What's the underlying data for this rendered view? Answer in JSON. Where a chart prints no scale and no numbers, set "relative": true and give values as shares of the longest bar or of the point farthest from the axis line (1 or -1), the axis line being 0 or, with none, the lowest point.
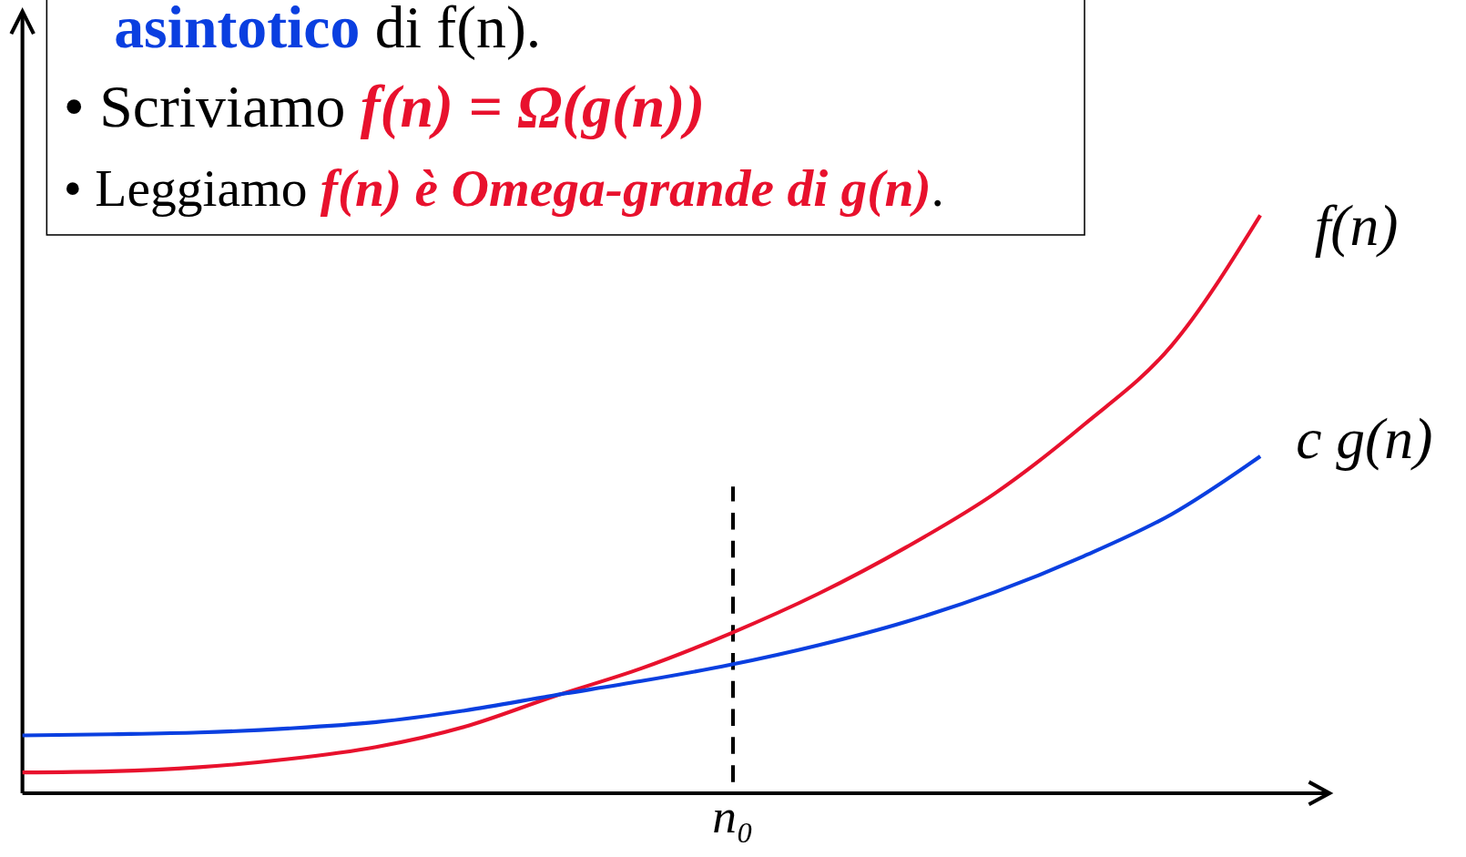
{
  "chart_data": {
    "type": "line",
    "relative": true,
    "categories": [
      null,
      null,
      null,
      null,
      null,
      null,
      null,
      null,
      null,
      null,
      null,
      null,
      null,
      null,
      null
    ],
    "series": [
      {
        "name": "f(n)",
        "color": "#e8112d",
        "values": [
          0.036,
          0.038,
          0.045,
          0.059,
          0.08,
          0.115,
          0.167,
          0.216,
          0.276,
          0.345,
          0.426,
          0.519,
          0.637,
          0.775,
          1
        ]
      },
      {
        "name": "c g(n)",
        "color": "#0a3fe0",
        "values": [
          0.1,
          0.102,
          0.105,
          0.112,
          0.123,
          0.143,
          0.169,
          0.194,
          0.222,
          0.256,
          0.297,
          0.348,
          0.41,
          0.483,
          0.583
        ]
      }
    ],
    "ref_lines": [
      {
        "axis": "x",
        "label": "n₀",
        "line_style": "dashed",
        "color": "#000000"
      }
    ],
    "annotations": [
      "asintotico di f(n).",
      "• Scriviamo f(n) = Ω(g(n))",
      "• Leggiamo f(n) è Omega-grande di g(n)."
    ]
  }
}
